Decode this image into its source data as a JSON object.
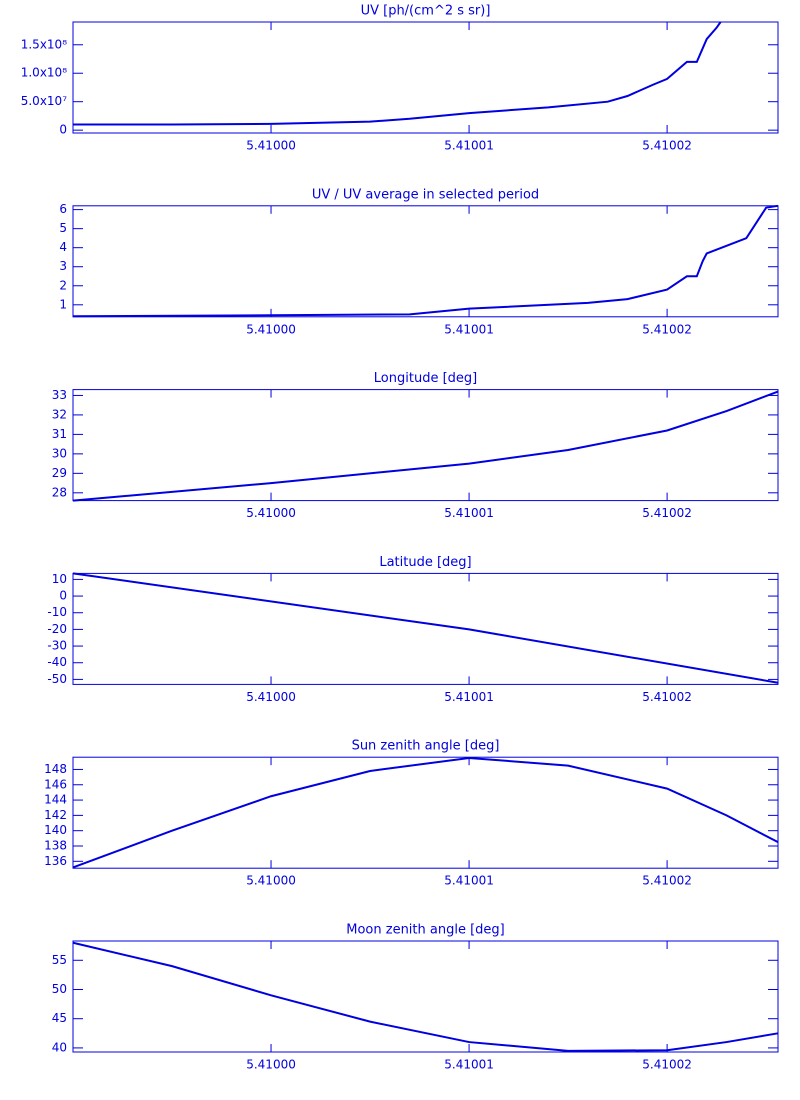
{
  "chart_data": [
    {
      "type": "line",
      "title": "UV [ph/(cm^2 s sr)]",
      "color": "#0000e0",
      "x": [
        5.40999,
        5.409995,
        5.41,
        5.410005,
        5.410007,
        5.41001,
        5.410014,
        5.410017,
        5.410018,
        5.4100193,
        5.41002,
        5.410021,
        5.4100215,
        5.410022,
        5.4100225,
        5.4100227
      ],
      "values": [
        10000000,
        10000000,
        11000000,
        15000000,
        20000000,
        30000000,
        40000000,
        50000000,
        60000000,
        80000000,
        90000000,
        120000000,
        120000000,
        160000000,
        180000000,
        190000000
      ],
      "xlim": [
        5.40999,
        5.4100256
      ],
      "xticks": [
        {
          "value": 5.41,
          "label": "5.41000"
        },
        {
          "value": 5.41001,
          "label": "5.41001"
        },
        {
          "value": 5.41002,
          "label": "5.41002"
        }
      ],
      "ylim": [
        -5000000,
        190000000
      ],
      "yticks": [
        0,
        {
          "value": 50000000,
          "label": "5.0x10⁷"
        },
        {
          "value": 100000000,
          "label": "1.0x10⁸"
        },
        {
          "value": 150000000,
          "label": "1.5x10⁸"
        }
      ]
    },
    {
      "type": "line",
      "title": "UV / UV average in selected period",
      "color": "#0000e0",
      "x": [
        5.40999,
        5.41,
        5.410007,
        5.41001,
        5.410016,
        5.410018,
        5.41002,
        5.410021,
        5.4100215,
        5.4100218,
        5.410022,
        5.410024,
        5.410025,
        5.4100256
      ],
      "values": [
        0.4,
        0.45,
        0.5,
        0.8,
        1.1,
        1.3,
        1.8,
        2.5,
        2.5,
        3.3,
        3.7,
        4.5,
        6.1,
        6.2
      ],
      "xlim": [
        5.40999,
        5.4100256
      ],
      "xticks": [
        {
          "value": 5.41,
          "label": "5.41000"
        },
        {
          "value": 5.41001,
          "label": "5.41001"
        },
        {
          "value": 5.41002,
          "label": "5.41002"
        }
      ],
      "ylim": [
        0.37,
        6.2
      ],
      "yticks": [
        1,
        2,
        3,
        4,
        5,
        6
      ]
    },
    {
      "type": "line",
      "title": "Longitude [deg]",
      "color": "#0000e0",
      "x": [
        5.40999,
        5.41,
        5.41001,
        5.410015,
        5.41002,
        5.410023,
        5.4100256
      ],
      "values": [
        27.6,
        28.5,
        29.5,
        30.2,
        31.2,
        32.2,
        33.2
      ],
      "xlim": [
        5.40999,
        5.4100256
      ],
      "xticks": [
        {
          "value": 5.41,
          "label": "5.41000"
        },
        {
          "value": 5.41001,
          "label": "5.41001"
        },
        {
          "value": 5.41002,
          "label": "5.41002"
        }
      ],
      "ylim": [
        27.6,
        33.3
      ],
      "yticks": [
        28,
        29,
        30,
        31,
        32,
        33
      ]
    },
    {
      "type": "line",
      "title": "Latitude [deg]",
      "color": "#0000e0",
      "x": [
        5.40999,
        5.41001,
        5.4100256
      ],
      "values": [
        13.6,
        -20,
        -52
      ],
      "xlim": [
        5.40999,
        5.4100256
      ],
      "xticks": [
        {
          "value": 5.41,
          "label": "5.41000"
        },
        {
          "value": 5.41001,
          "label": "5.41001"
        },
        {
          "value": 5.41002,
          "label": "5.41002"
        }
      ],
      "ylim": [
        -53,
        13.6
      ],
      "yticks": [
        -50,
        -40,
        -30,
        -20,
        -10,
        0,
        10
      ]
    },
    {
      "type": "line",
      "title": "Sun zenith angle [deg]",
      "color": "#0000e0",
      "x": [
        5.40999,
        5.409995,
        5.41,
        5.410005,
        5.41001,
        5.410015,
        5.41002,
        5.410023,
        5.4100256
      ],
      "values": [
        135.2,
        140,
        144.5,
        147.8,
        149.5,
        148.5,
        145.5,
        142,
        138.5
      ],
      "xlim": [
        5.40999,
        5.4100256
      ],
      "xticks": [
        {
          "value": 5.41,
          "label": "5.41000"
        },
        {
          "value": 5.41001,
          "label": "5.41001"
        },
        {
          "value": 5.41002,
          "label": "5.41002"
        }
      ],
      "ylim": [
        135.1,
        149.6
      ],
      "yticks": [
        136,
        138,
        140,
        142,
        144,
        146,
        148
      ]
    },
    {
      "type": "line",
      "title": "Moon zenith angle [deg]",
      "color": "#0000e0",
      "x": [
        5.40999,
        5.409995,
        5.41,
        5.410005,
        5.41001,
        5.410015,
        5.41002,
        5.410023,
        5.4100256
      ],
      "values": [
        58,
        54,
        49,
        44.5,
        41,
        39.5,
        39.6,
        41,
        42.5
      ],
      "xlim": [
        5.40999,
        5.4100256
      ],
      "xticks": [
        {
          "value": 5.41,
          "label": "5.41000"
        },
        {
          "value": 5.41001,
          "label": "5.41001"
        },
        {
          "value": 5.41002,
          "label": "5.41002"
        }
      ],
      "ylim": [
        39.3,
        58.3
      ],
      "yticks": [
        40,
        45,
        50,
        55
      ]
    }
  ]
}
